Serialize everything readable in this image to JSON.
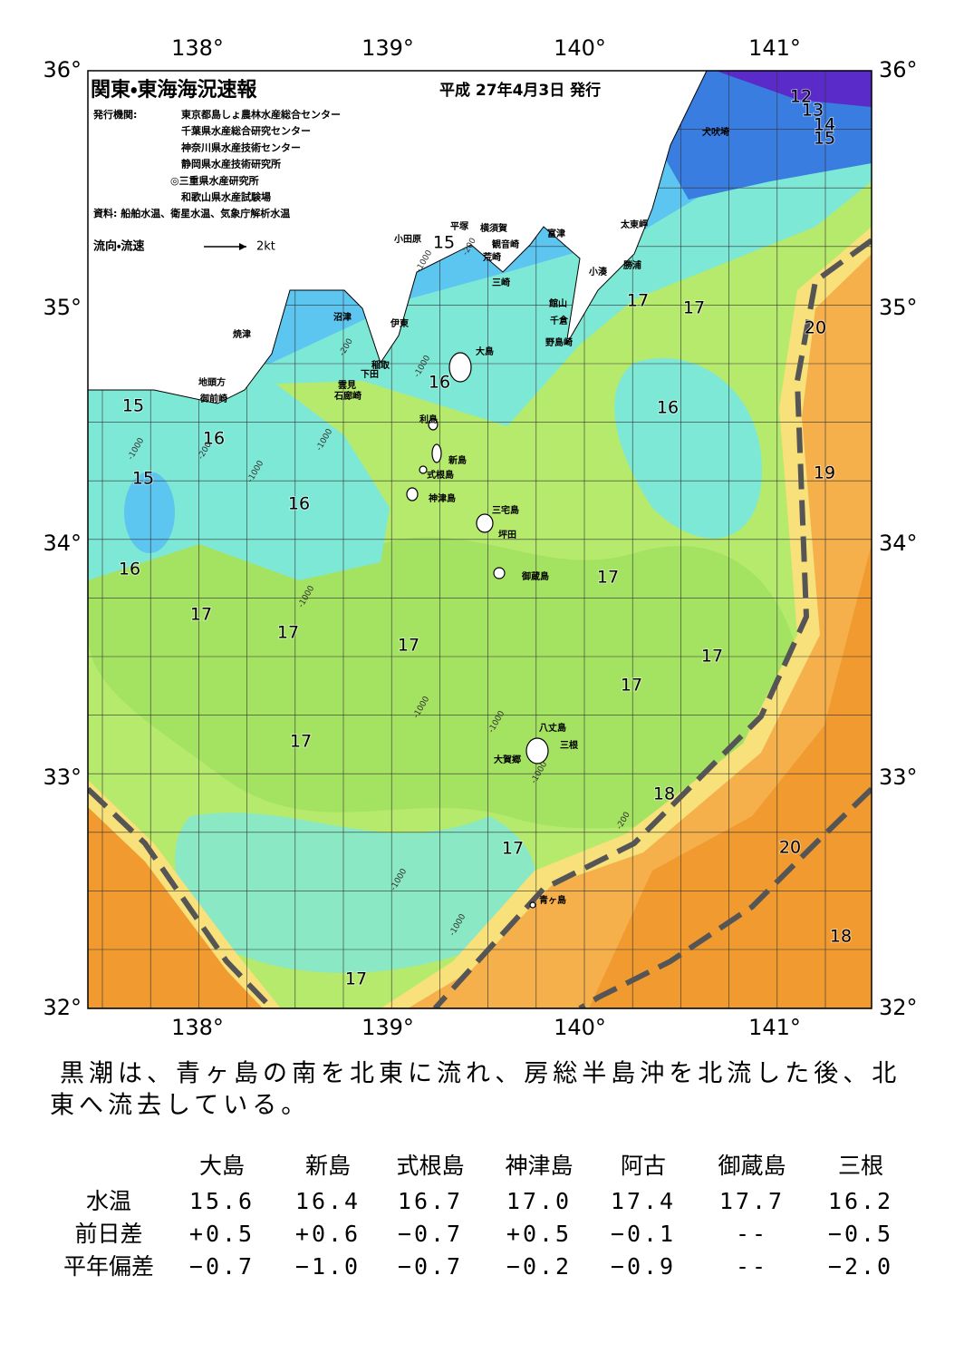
{
  "header": {
    "title": "関東・東海海況速報",
    "date": "平成 27年4月3日 発行",
    "publisher_label": "発行機関:",
    "publishers": [
      "東京都島しょ農林水産総合センター",
      "千葉県水産総合研究センター",
      "神奈川県水産技術センター",
      "静岡県水産技術研究所",
      "◎三重県水産研究所",
      "和歌山県水産試験場"
    ],
    "source": "資料: 船舶水温、衛星水温、気象庁解析水温",
    "legend_label": "流向・流速",
    "legend_scale": "2kt"
  },
  "map": {
    "lon_labels": [
      "138°",
      "139°",
      "140°",
      "141°"
    ],
    "lat_labels": [
      "36°",
      "35°",
      "34°",
      "33°",
      "32°"
    ],
    "isotherm_labels": [
      "15",
      "16",
      "15",
      "16",
      "16",
      "17",
      "17",
      "17",
      "17",
      "16",
      "15",
      "17",
      "17",
      "20",
      "16",
      "19",
      "17",
      "17",
      "17",
      "18",
      "17",
      "20",
      "18",
      "17",
      "12",
      "13",
      "14",
      "15"
    ],
    "place_names": [
      "犬吠埼",
      "太東岬",
      "勝浦",
      "小湊",
      "富津",
      "横須賀",
      "平塚",
      "観音崎",
      "荒崎",
      "三崎",
      "小田原",
      "館山",
      "千倉",
      "野島崎",
      "沼津",
      "伊東",
      "焼津",
      "稲取",
      "下田",
      "雲見",
      "石廊崎",
      "地頭方",
      "御前崎",
      "大島",
      "利島",
      "新島",
      "式根島",
      "神津島",
      "三宅島",
      "坪田",
      "御蔵島",
      "八丈島",
      "三根",
      "大賀郷",
      "青ヶ島"
    ],
    "depth_labels": [
      "-200",
      "-1000",
      "-1000",
      "-200",
      "-1000",
      "-1000",
      "-200",
      "-1000",
      "-1000",
      "-1000",
      "-1000",
      "-1000",
      "-200",
      "-1000",
      "-1000"
    ]
  },
  "description": [
    "黒潮は、青ヶ島の南を北東に流れ、房総半島沖を北流した後、北",
    "東へ流去している。"
  ],
  "table": {
    "columns": [
      "大島",
      "新島",
      "式根島",
      "神津島",
      "阿古",
      "御蔵島",
      "三根"
    ],
    "rows": [
      [
        "水温",
        "15.6",
        "16.4",
        "16.7",
        "17.0",
        "17.4",
        "17.7",
        "16.2"
      ],
      [
        "前日差",
        "+0.5",
        "+0.6",
        "−0.7",
        "+0.5",
        "−0.1",
        "--",
        "−0.5"
      ],
      [
        "平年偏差",
        "−0.7",
        "−1.0",
        "−0.7",
        "−0.2",
        "−0.9",
        "--",
        "−2.0"
      ]
    ]
  }
}
